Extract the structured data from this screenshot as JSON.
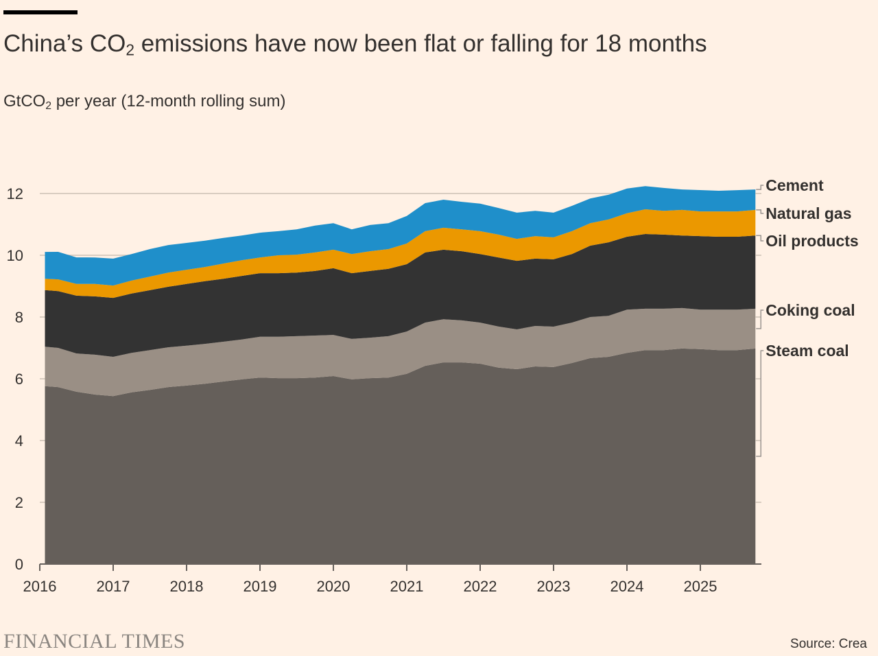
{
  "header": {
    "title_pre": "China’s CO",
    "title_sub": "2",
    "title_post": " emissions have now been flat or falling for 18 months",
    "subtitle_pre": "GtCO",
    "subtitle_sub": "2",
    "subtitle_post": " per year (12-month rolling sum)"
  },
  "footer": {
    "logo": "FINANCIAL TIMES",
    "source": "Source: Crea"
  },
  "chart_data": {
    "type": "area",
    "stacked": true,
    "title": "China’s CO2 emissions have now been flat or falling for 18 months",
    "ylabel": "GtCO2 per year (12-month rolling sum)",
    "xlabel": "",
    "ylim": [
      0,
      12
    ],
    "yticks": [
      0,
      2,
      4,
      6,
      8,
      10,
      12
    ],
    "xticks": [
      2016,
      2017,
      2018,
      2019,
      2020,
      2021,
      2022,
      2023,
      2024,
      2025
    ],
    "xlim": [
      2016,
      2025.83
    ],
    "legend": "right-labels",
    "x": [
      2016.07,
      2016.25,
      2016.5,
      2016.75,
      2017,
      2017.25,
      2017.5,
      2017.75,
      2018,
      2018.25,
      2018.5,
      2018.75,
      2019,
      2019.25,
      2019.5,
      2019.75,
      2020,
      2020.25,
      2020.5,
      2020.75,
      2021,
      2021.25,
      2021.5,
      2021.75,
      2022,
      2022.25,
      2022.5,
      2022.75,
      2023,
      2023.25,
      2023.5,
      2023.75,
      2024,
      2024.25,
      2024.5,
      2024.75,
      2025,
      2025.25,
      2025.5,
      2025.75
    ],
    "series": [
      {
        "name": "Steam coal",
        "color": "#655f5a",
        "values": [
          5.76,
          5.73,
          5.58,
          5.49,
          5.44,
          5.56,
          5.64,
          5.73,
          5.78,
          5.84,
          5.91,
          5.98,
          6.04,
          6.02,
          6.02,
          6.04,
          6.09,
          5.98,
          6.02,
          6.04,
          6.16,
          6.42,
          6.53,
          6.53,
          6.49,
          6.36,
          6.31,
          6.4,
          6.38,
          6.51,
          6.67,
          6.71,
          6.84,
          6.93,
          6.93,
          6.98,
          6.96,
          6.93,
          6.93,
          6.98
        ]
      },
      {
        "name": "Coking coal",
        "color": "#9a8f85",
        "values": [
          1.28,
          1.27,
          1.24,
          1.29,
          1.27,
          1.28,
          1.29,
          1.29,
          1.29,
          1.29,
          1.29,
          1.29,
          1.32,
          1.34,
          1.36,
          1.36,
          1.33,
          1.31,
          1.31,
          1.34,
          1.37,
          1.4,
          1.4,
          1.36,
          1.33,
          1.33,
          1.29,
          1.31,
          1.31,
          1.31,
          1.33,
          1.33,
          1.4,
          1.34,
          1.34,
          1.31,
          1.28,
          1.31,
          1.31,
          1.29
        ]
      },
      {
        "name": "Oil products",
        "color": "#333333",
        "values": [
          1.83,
          1.84,
          1.87,
          1.89,
          1.91,
          1.92,
          1.94,
          1.96,
          2.0,
          2.03,
          2.04,
          2.06,
          2.06,
          2.06,
          2.06,
          2.09,
          2.16,
          2.13,
          2.16,
          2.18,
          2.18,
          2.27,
          2.25,
          2.24,
          2.22,
          2.24,
          2.22,
          2.18,
          2.18,
          2.22,
          2.31,
          2.38,
          2.36,
          2.42,
          2.4,
          2.35,
          2.38,
          2.36,
          2.36,
          2.37
        ]
      },
      {
        "name": "Natural gas",
        "color": "#eb9800",
        "values": [
          0.37,
          0.38,
          0.38,
          0.4,
          0.4,
          0.42,
          0.44,
          0.46,
          0.46,
          0.46,
          0.49,
          0.51,
          0.51,
          0.58,
          0.58,
          0.6,
          0.6,
          0.62,
          0.64,
          0.64,
          0.67,
          0.69,
          0.71,
          0.71,
          0.74,
          0.74,
          0.71,
          0.73,
          0.71,
          0.74,
          0.73,
          0.74,
          0.76,
          0.8,
          0.77,
          0.83,
          0.8,
          0.82,
          0.82,
          0.83
        ]
      },
      {
        "name": "Cement",
        "color": "#1f8fca",
        "values": [
          0.87,
          0.89,
          0.86,
          0.86,
          0.87,
          0.86,
          0.89,
          0.89,
          0.87,
          0.85,
          0.83,
          0.8,
          0.8,
          0.78,
          0.82,
          0.87,
          0.86,
          0.8,
          0.85,
          0.84,
          0.89,
          0.91,
          0.91,
          0.89,
          0.89,
          0.86,
          0.85,
          0.82,
          0.8,
          0.82,
          0.8,
          0.8,
          0.8,
          0.75,
          0.74,
          0.66,
          0.69,
          0.67,
          0.69,
          0.66
        ]
      }
    ]
  }
}
